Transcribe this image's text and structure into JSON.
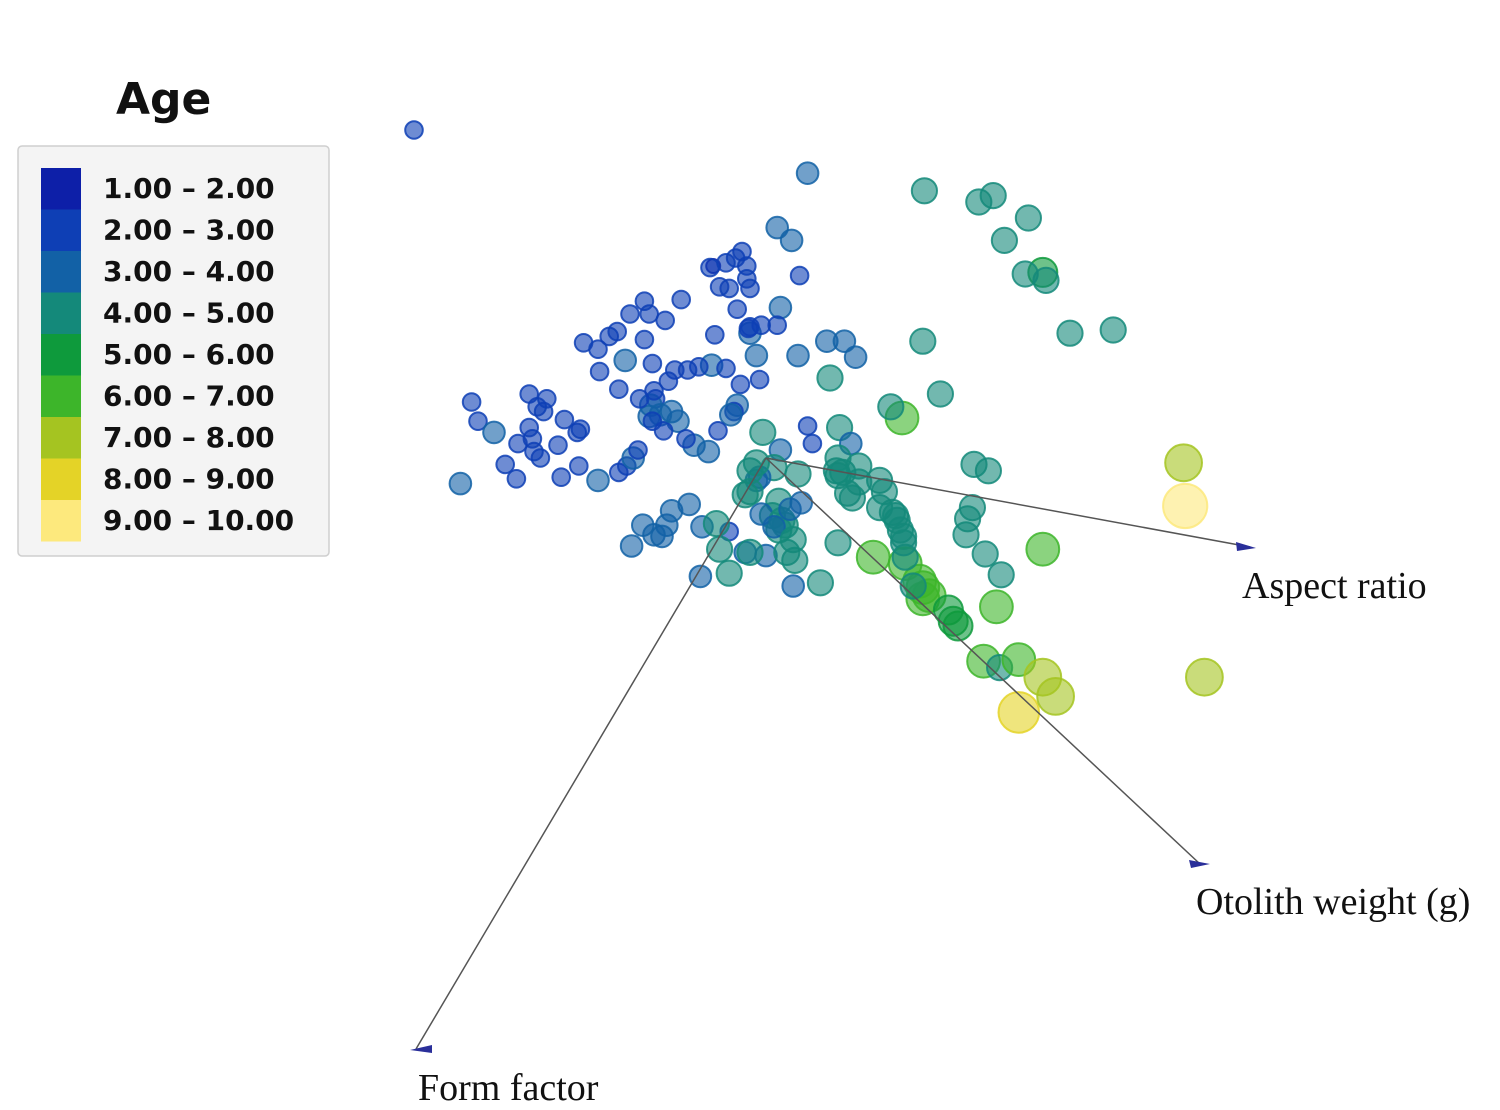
{
  "chart_data": {
    "type": "scatter",
    "subtype": "3d-biplot",
    "legend": {
      "title": "Age",
      "placement": "top-left",
      "entries": [
        {
          "label": "1.00 – 2.00",
          "color": "#0d1fa8"
        },
        {
          "label": "2.00 – 3.00",
          "color": "#0e3fb5"
        },
        {
          "label": "3.00 – 4.00",
          "color": "#1261a6"
        },
        {
          "label": "4.00 – 5.00",
          "color": "#14897a"
        },
        {
          "label": "5.00 – 6.00",
          "color": "#0e9a3c"
        },
        {
          "label": "6.00 – 7.00",
          "color": "#3db52a"
        },
        {
          "label": "7.00 – 8.00",
          "color": "#a5c421"
        },
        {
          "label": "8.00 – 9.00",
          "color": "#e4d327"
        },
        {
          "label": "9.00 – 10.00",
          "color": "#fde97d"
        }
      ]
    },
    "axes": [
      {
        "name": "Aspect ratio",
        "direction": [
          1,
          0.17
        ]
      },
      {
        "name": "Otolith weight (g)",
        "direction": [
          1,
          0.95
        ]
      },
      {
        "name": "Form factor",
        "direction": [
          -0.47,
          0.88
        ]
      }
    ],
    "points": [
      [
        -1.07,
        -3.2,
        1.5
      ],
      [
        0.79,
        -3.47,
        4.5
      ],
      [
        0.99,
        -3.04,
        4.5
      ],
      [
        -2.2,
        -2.05,
        2.5
      ],
      [
        0.26,
        -1.78,
        3.5
      ],
      [
        0.99,
        -1.67,
        4.5
      ],
      [
        1.33,
        -1.6,
        4.5
      ],
      [
        -0.33,
        -1.2,
        1.5
      ],
      [
        0.21,
        -1.14,
        2.5
      ],
      [
        0.07,
        -1.44,
        3.5
      ],
      [
        -0.12,
        -1.2,
        2.5
      ],
      [
        -0.12,
        -1.12,
        2.5
      ],
      [
        0.16,
        -1.36,
        3.5
      ],
      [
        -0.53,
        -0.99,
        2.5
      ],
      [
        -0.35,
        -1.19,
        2.5
      ],
      [
        -0.25,
        -1.22,
        2.5
      ],
      [
        -0.19,
        -1.25,
        2.5
      ],
      [
        -0.15,
        -1.29,
        2.5
      ],
      [
        -0.29,
        -1.07,
        2.5
      ],
      [
        -0.23,
        -1.06,
        2.5
      ],
      [
        -0.1,
        -1.06,
        2.5
      ],
      [
        0.09,
        -0.94,
        3.5
      ],
      [
        -0.76,
        -0.98,
        2.5
      ],
      [
        -0.73,
        -0.9,
        2.5
      ],
      [
        -0.18,
        -0.93,
        2.5
      ],
      [
        -0.1,
        -0.78,
        3.5
      ],
      [
        0.07,
        -0.83,
        2.5
      ],
      [
        -0.06,
        -0.64,
        3.5
      ],
      [
        -0.03,
        -0.83,
        2.5
      ],
      [
        -0.11,
        -0.81,
        2.5
      ],
      [
        -0.1,
        -0.82,
        2.5
      ],
      [
        -0.32,
        -0.77,
        2.5
      ],
      [
        0.2,
        -0.64,
        3.5
      ],
      [
        0.4,
        -0.5,
        4.5
      ],
      [
        0.56,
        -0.63,
        3.5
      ],
      [
        0.38,
        -0.73,
        3.5
      ],
      [
        0.49,
        -0.73,
        3.5
      ],
      [
        -1.04,
        -0.54,
        2.5
      ],
      [
        -0.71,
        -0.59,
        2.5
      ],
      [
        -0.57,
        -0.55,
        2.5
      ],
      [
        -0.61,
        -0.48,
        2.5
      ],
      [
        -0.34,
        -0.58,
        3.5
      ],
      [
        -0.42,
        -0.57,
        2.5
      ],
      [
        -0.49,
        -0.55,
        2.5
      ],
      [
        -0.04,
        -0.49,
        2.5
      ],
      [
        -0.16,
        -0.46,
        2.5
      ],
      [
        -0.25,
        -0.56,
        2.5
      ],
      [
        -0.69,
        -0.37,
        2.5
      ],
      [
        -0.72,
        -0.33,
        3.5
      ],
      [
        -0.73,
        -0.26,
        3.5
      ],
      [
        -0.66,
        -0.27,
        3.5
      ],
      [
        -0.71,
        -0.23,
        2.5
      ],
      [
        -0.55,
        -0.23,
        3.5
      ],
      [
        -0.64,
        -0.17,
        2.5
      ],
      [
        -0.45,
        -0.08,
        3.5
      ],
      [
        -0.36,
        -0.04,
        3.5
      ],
      [
        -0.18,
        -0.33,
        3.5
      ],
      [
        -0.2,
        -0.29,
        2.5
      ],
      [
        -0.22,
        -0.27,
        3.5
      ],
      [
        -0.3,
        -0.17,
        2.5
      ],
      [
        -0.5,
        -0.12,
        2.5
      ],
      [
        0.09,
        -0.05,
        3.5
      ],
      [
        0.05,
        0.06,
        4.5
      ],
      [
        0.08,
        0.27,
        4.5
      ],
      [
        0.04,
        0.36,
        4.5
      ],
      [
        0.12,
        0.42,
        4.5
      ],
      [
        0.08,
        0.45,
        4.5
      ],
      [
        0.26,
        -0.2,
        2.5
      ],
      [
        0.29,
        -0.09,
        2.5
      ],
      [
        0.44,
        0.08,
        4.5
      ],
      [
        0.45,
        0.11,
        4.5
      ],
      [
        0.48,
        0.09,
        4.5
      ],
      [
        0.58,
        0.15,
        4.5
      ],
      [
        0.51,
        0.22,
        4.5
      ],
      [
        0.54,
        0.25,
        4.5
      ],
      [
        0.71,
        0.31,
        4.5
      ],
      [
        0.79,
        0.34,
        4.5
      ],
      [
        0.86,
        0.49,
        4.5
      ],
      [
        0.67,
        0.62,
        6.5
      ],
      [
        0.87,
        0.66,
        6.5
      ],
      [
        0.96,
        0.77,
        6.5
      ],
      [
        0.98,
        0.81,
        6.5
      ],
      [
        0.98,
        0.88,
        6.5
      ],
      [
        1.02,
        0.86,
        6.5
      ],
      [
        -0.06,
        0.14,
        3.5
      ],
      [
        -0.04,
        0.12,
        3.5
      ],
      [
        -0.03,
        0.35,
        3.5
      ],
      [
        0.1,
        0.39,
        4.5
      ],
      [
        0.05,
        0.43,
        3.5
      ],
      [
        0.17,
        0.51,
        4.5
      ],
      [
        -0.4,
        0.43,
        3.5
      ],
      [
        -0.23,
        0.46,
        2.5
      ],
      [
        -0.13,
        0.59,
        3.5
      ],
      [
        0.0,
        0.61,
        3.5
      ],
      [
        0.13,
        0.59,
        4.5
      ],
      [
        0.18,
        0.64,
        4.5
      ],
      [
        0.17,
        0.8,
        3.5
      ],
      [
        -0.62,
        0.42,
        3.5
      ],
      [
        -0.84,
        0.55,
        3.5
      ],
      [
        -0.7,
        0.48,
        3.5
      ],
      [
        -0.65,
        0.49,
        3.5
      ],
      [
        0.46,
        -0.19,
        4.5
      ],
      [
        0.53,
        -0.09,
        3.5
      ],
      [
        0.45,
        0.0,
        4.5
      ],
      [
        0.58,
        0.05,
        4.5
      ],
      [
        0.71,
        0.14,
        4.5
      ],
      [
        0.74,
        0.21,
        4.5
      ],
      [
        0.81,
        0.36,
        4.5
      ],
      [
        0.82,
        0.39,
        4.5
      ],
      [
        0.84,
        0.45,
        4.5
      ],
      [
        0.86,
        0.53,
        4.5
      ],
      [
        0.87,
        0.62,
        4.5
      ],
      [
        0.92,
        0.8,
        4.5
      ],
      [
        1.3,
        0.04,
        4.5
      ],
      [
        1.39,
        0.08,
        4.5
      ],
      [
        1.29,
        0.31,
        4.5
      ],
      [
        1.26,
        0.38,
        4.5
      ],
      [
        1.25,
        0.48,
        4.5
      ],
      [
        1.37,
        0.6,
        4.5
      ],
      [
        1.47,
        0.73,
        4.5
      ],
      [
        1.44,
        0.93,
        6.5
      ],
      [
        1.14,
        0.95,
        5.5
      ],
      [
        1.17,
        1.02,
        5.5
      ],
      [
        1.2,
        1.05,
        5.5
      ],
      [
        1.36,
        1.27,
        6.5
      ],
      [
        1.73,
        0.57,
        6.5
      ],
      [
        1.46,
        1.31,
        4.5
      ],
      [
        1.58,
        1.26,
        6.5
      ],
      [
        1.73,
        1.37,
        7.5
      ],
      [
        1.58,
        1.59,
        8.5
      ],
      [
        1.81,
        1.49,
        7.5
      ],
      [
        2.17,
        -0.8,
        4.5
      ],
      [
        1.73,
        -1.16,
        5.5
      ],
      [
        2.74,
        1.37,
        7.5
      ],
      [
        2.61,
        0.03,
        7.5
      ],
      [
        2.62,
        0.3,
        9.5
      ],
      [
        1.42,
        -1.64,
        4.5
      ],
      [
        1.64,
        -1.5,
        4.5
      ],
      [
        1.62,
        -1.15,
        4.5
      ],
      [
        1.49,
        -1.36,
        4.5
      ],
      [
        1.75,
        -1.11,
        4.5
      ],
      [
        1.9,
        -0.78,
        4.5
      ],
      [
        0.98,
        -0.73,
        4.5
      ],
      [
        1.09,
        -0.4,
        4.5
      ],
      [
        0.85,
        -0.25,
        6.5
      ],
      [
        0.78,
        -0.32,
        4.5
      ],
      [
        -1.05,
        0.14,
        3.5
      ],
      [
        -1.17,
        0.05,
        2.5
      ],
      [
        -1.28,
        0.12,
        2.5
      ],
      [
        -1.16,
        -0.18,
        2.5
      ],
      [
        -1.26,
        -0.24,
        2.5
      ],
      [
        -1.39,
        -0.29,
        2.5
      ],
      [
        -1.43,
        -0.32,
        2.5
      ],
      [
        -1.37,
        -0.37,
        2.5
      ],
      [
        -1.48,
        -0.4,
        2.5
      ],
      [
        -1.45,
        -0.04,
        2.5
      ],
      [
        -1.41,
        0.0,
        2.5
      ],
      [
        -1.3,
        -0.08,
        2.5
      ],
      [
        -1.18,
        -0.16,
        2.5
      ],
      [
        -1.8,
        -0.23,
        2.5
      ],
      [
        -1.84,
        -0.35,
        2.5
      ],
      [
        -1.48,
        -0.19,
        2.5
      ],
      [
        -1.46,
        -0.12,
        2.5
      ],
      [
        -1.14,
        -0.72,
        2.5
      ],
      [
        -1.05,
        -0.68,
        2.5
      ],
      [
        -0.98,
        -0.76,
        2.5
      ],
      [
        -0.88,
        -0.61,
        3.5
      ],
      [
        -0.93,
        -0.79,
        2.5
      ],
      [
        -0.76,
        -0.74,
        2.5
      ],
      [
        -0.85,
        -0.9,
        2.5
      ],
      [
        -0.63,
        -0.86,
        2.5
      ],
      [
        -0.92,
        -0.43,
        2.5
      ],
      [
        -0.79,
        -0.37,
        2.5
      ],
      [
        -0.7,
        -0.42,
        2.5
      ],
      [
        -0.59,
        -0.29,
        3.5
      ],
      [
        -0.92,
        0.09,
        2.5
      ],
      [
        -0.87,
        0.05,
        2.5
      ],
      [
        -0.83,
        0.0,
        3.5
      ],
      [
        -0.8,
        -0.05,
        2.5
      ],
      [
        -1.55,
        -0.09,
        2.5
      ],
      [
        -1.63,
        0.04,
        2.5
      ],
      [
        -1.56,
        0.13,
        2.5
      ],
      [
        -1.7,
        -0.16,
        3.5
      ],
      [
        -1.91,
        0.16,
        3.5
      ],
      [
        -0.59,
        0.33,
        3.5
      ],
      [
        -0.48,
        0.29,
        3.5
      ],
      [
        -0.31,
        0.41,
        4.5
      ],
      [
        -0.29,
        0.57,
        4.5
      ],
      [
        -0.41,
        0.74,
        3.5
      ],
      [
        -0.23,
        0.72,
        4.5
      ],
      [
        -0.1,
        0.59,
        4.5
      ],
      [
        0.15,
        0.32,
        3.5
      ],
      [
        0.22,
        0.28,
        3.5
      ],
      [
        -0.02,
        -0.16,
        4.5
      ],
      [
        -0.1,
        0.08,
        4.5
      ],
      [
        -0.13,
        0.23,
        4.5
      ],
      [
        -0.1,
        0.21,
        4.5
      ],
      [
        -0.06,
        0.03,
        4.5
      ],
      [
        -0.77,
        0.42,
        3.5
      ],
      [
        0.34,
        0.78,
        4.5
      ],
      [
        0.45,
        0.53,
        4.5
      ],
      [
        0.2,
        0.1,
        4.5
      ]
    ]
  }
}
